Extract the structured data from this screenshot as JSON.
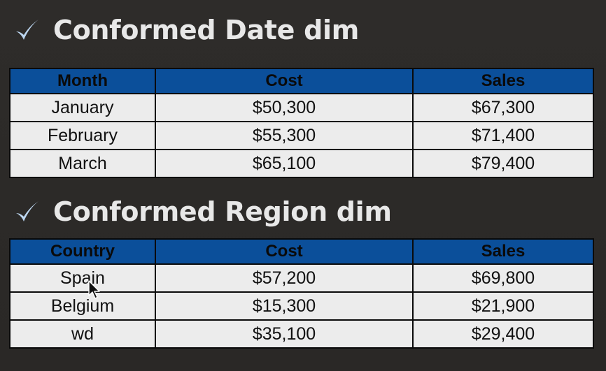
{
  "sections": [
    {
      "heading": "Conformed Date dim",
      "headers": [
        "Month",
        "Cost",
        "Sales"
      ],
      "rows": [
        [
          "January",
          "$50,300",
          "$67,300"
        ],
        [
          "February",
          "$55,300",
          "$71,400"
        ],
        [
          "March",
          "$65,100",
          "$79,400"
        ]
      ]
    },
    {
      "heading": "Conformed Region dim",
      "headers": [
        "Country",
        "Cost",
        "Sales"
      ],
      "rows": [
        [
          "Spain",
          "$57,200",
          "$69,800"
        ],
        [
          "Belgium",
          "$15,300",
          "$21,900"
        ],
        [
          "wd",
          "$35,100",
          "$29,400"
        ]
      ]
    }
  ],
  "colors": {
    "background": "#2c2a28",
    "heading_text": "#e8e8e8",
    "checkmark": "#bcd6f0",
    "table_header_bg": "#0b4f9a",
    "table_cell_bg": "#ececec",
    "table_border": "#0a0a0a"
  },
  "icons": {
    "bullet": "checkmark-icon",
    "pointer": "mouse-cursor-icon"
  }
}
